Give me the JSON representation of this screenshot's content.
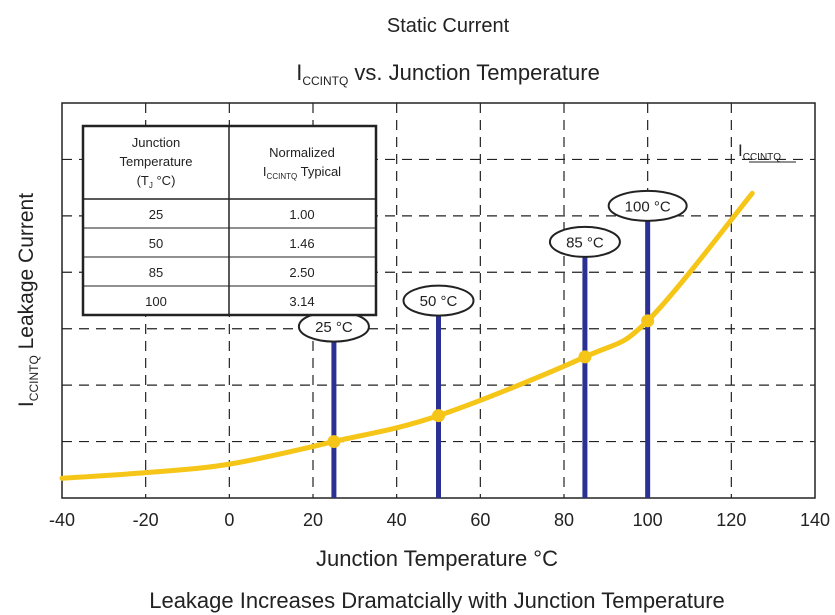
{
  "chart_data": {
    "type": "line",
    "title_line1": "Static Current",
    "title_main": "I",
    "title_sub": "CCINTQ",
    "title_rest": " vs. Junction Temperature",
    "xlabel": "Junction Temperature °C",
    "ylabel_main": "I",
    "ylabel_sub": "CCINTQ",
    "ylabel_rest": " Leakage Current",
    "caption": "Leakage Increases Dramatcially with Junction Temperature",
    "xlim": [
      -40,
      140
    ],
    "x_ticks": [
      "-40",
      "-20",
      "0",
      "20",
      "40",
      "60",
      "80",
      "100",
      "120",
      "140"
    ],
    "ylim": [
      0,
      7
    ],
    "grid": true,
    "series": [
      {
        "name_main": "I",
        "name_sub": "CCINTQ",
        "color": "#f5c518",
        "x": [
          -40,
          -20,
          0,
          25,
          50,
          85,
          100,
          125
        ],
        "y": [
          0.35,
          0.45,
          0.6,
          1.0,
          1.46,
          2.5,
          3.14,
          5.4
        ]
      }
    ],
    "markers": [
      {
        "x": 25,
        "label": "25 °C"
      },
      {
        "x": 50,
        "label": "50 °C"
      },
      {
        "x": 85,
        "label": "85 °C"
      },
      {
        "x": 100,
        "label": "100 °C"
      }
    ],
    "marker_color": "#2b3192",
    "table": {
      "header_col1": [
        "Junction",
        "Temperature"
      ],
      "header_col1_line3_main": "(T",
      "header_col1_line3_sub": "J",
      "header_col1_line3_rest": " °C)",
      "header_col2_line1": "Normalized",
      "header_col2_main": "I",
      "header_col2_sub": "CCINTQ",
      "header_col2_rest": " Typical",
      "rows": [
        [
          "25",
          "1.00"
        ],
        [
          "50",
          "1.46"
        ],
        [
          "85",
          "2.50"
        ],
        [
          "100",
          "3.14"
        ]
      ]
    }
  }
}
